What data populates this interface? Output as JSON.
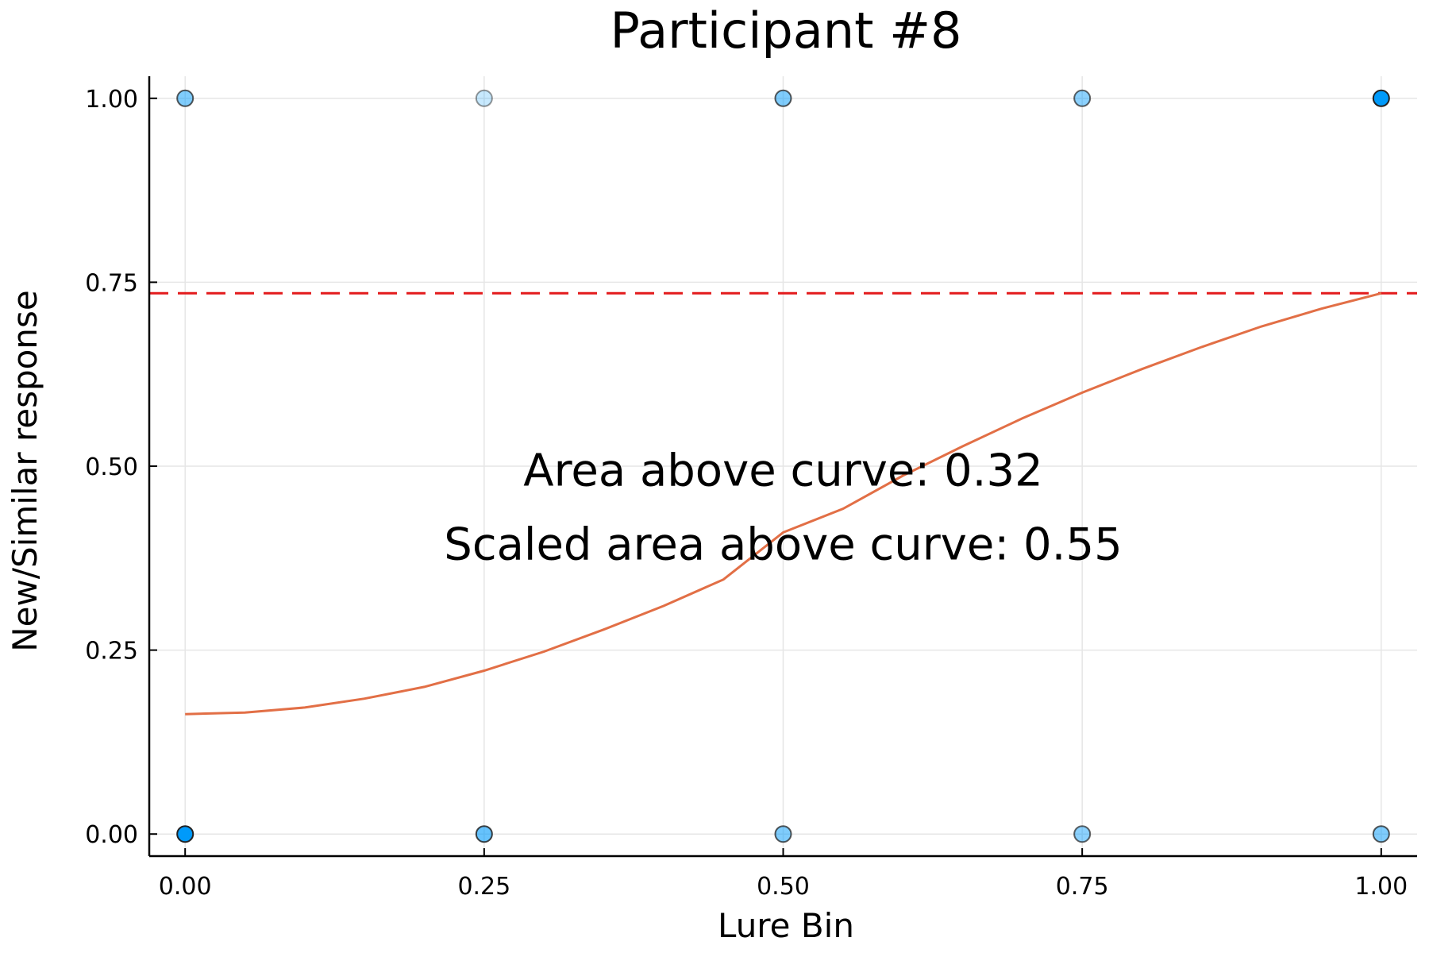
{
  "chart_data": {
    "type": "scatter",
    "title": "Participant #8",
    "xlabel": "Lure Bin",
    "ylabel": "New/Similar response",
    "xlim": [
      -0.03,
      1.03
    ],
    "ylim": [
      -0.03,
      1.03
    ],
    "xticks": [
      "0.00",
      "0.25",
      "0.50",
      "0.75",
      "1.00"
    ],
    "xtick_values": [
      0,
      0.25,
      0.5,
      0.75,
      1.0
    ],
    "yticks": [
      "0.00",
      "0.25",
      "0.50",
      "0.75",
      "1.00"
    ],
    "ytick_values": [
      0,
      0.25,
      0.5,
      0.75,
      1.0
    ],
    "grid": true,
    "legend": "none",
    "point_color": "#009AFA",
    "curve_color": "#E26F46",
    "threshold_color": "#E31A1C",
    "points": [
      {
        "x": 0.0,
        "y": 1,
        "opacity": 0.5
      },
      {
        "x": 0.25,
        "y": 1,
        "opacity": 0.22
      },
      {
        "x": 0.5,
        "y": 1,
        "opacity": 0.5
      },
      {
        "x": 0.75,
        "y": 1,
        "opacity": 0.45
      },
      {
        "x": 1.0,
        "y": 1,
        "opacity": 1.0
      },
      {
        "x": 0.0,
        "y": 0,
        "opacity": 1.0
      },
      {
        "x": 0.25,
        "y": 0,
        "opacity": 0.6
      },
      {
        "x": 0.5,
        "y": 0,
        "opacity": 0.5
      },
      {
        "x": 0.75,
        "y": 0,
        "opacity": 0.45
      },
      {
        "x": 1.0,
        "y": 0,
        "opacity": 0.5
      }
    ],
    "fitted_curve": {
      "x": [
        0.0,
        0.05,
        0.1,
        0.15,
        0.2,
        0.25,
        0.3,
        0.35,
        0.4,
        0.45,
        0.5,
        0.55,
        0.6,
        0.65,
        0.7,
        0.75,
        0.8,
        0.85,
        0.9,
        0.95,
        1.0
      ],
      "y": [
        0.163,
        0.165,
        0.172,
        0.184,
        0.2,
        0.222,
        0.248,
        0.278,
        0.31,
        0.346,
        0.41,
        0.442,
        0.487,
        0.527,
        0.565,
        0.6,
        0.632,
        0.662,
        0.69,
        0.714,
        0.735
      ]
    },
    "threshold_y": 0.735,
    "annotations": [
      {
        "text": "Area above curve: 0.32",
        "x": 0.5,
        "y": 0.495
      },
      {
        "text": "Scaled area above curve: 0.55",
        "x": 0.5,
        "y": 0.395
      }
    ]
  }
}
